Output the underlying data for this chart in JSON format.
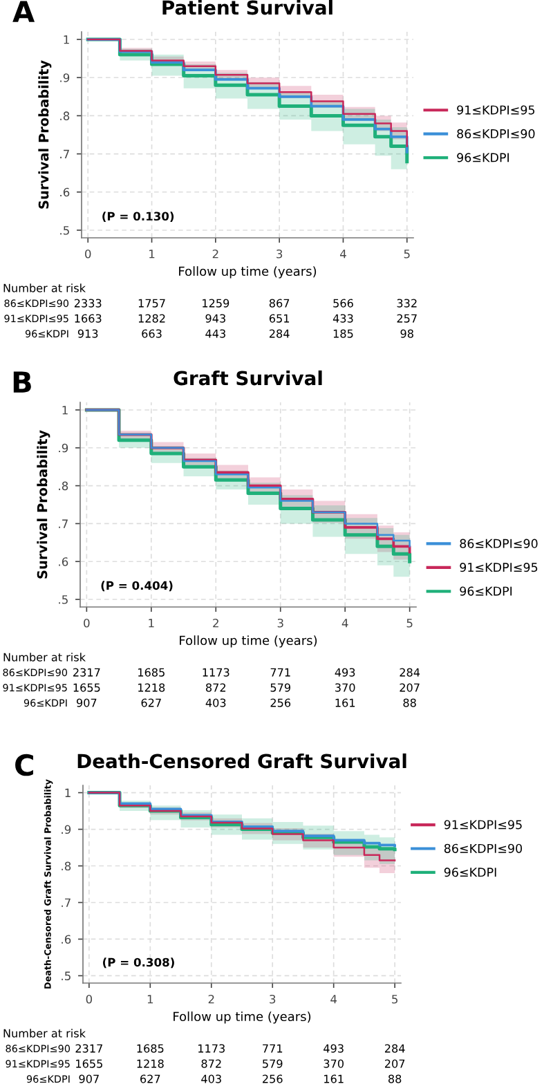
{
  "chart_data": [
    {
      "type": "step",
      "title": "Patient Survival",
      "xlabel": "Follow up time (years)",
      "ylabel": "Survival Probability",
      "xlim": [
        -0.1,
        5.1
      ],
      "ylim": [
        0.48,
        1.02
      ],
      "xticks": [
        0,
        1,
        2,
        3,
        4,
        5
      ],
      "yticks": [
        {
          "value": 0.5,
          "label": ".5"
        },
        {
          "value": 0.6,
          "label": ".6"
        },
        {
          "value": 0.7,
          "label": ".7"
        },
        {
          "value": 0.8,
          "label": ".8"
        },
        {
          "value": 0.9,
          "label": ".9"
        },
        1
      ],
      "grid": true,
      "legend": "right",
      "x": [
        0,
        0.5,
        1,
        1.5,
        2,
        2.5,
        3,
        3.5,
        4,
        4.5,
        4.75,
        5
      ],
      "series": [
        {
          "name": "91≤KDPI≤95",
          "color": "#c8285a",
          "values": [
            1,
            0.97,
            0.945,
            0.93,
            0.907,
            0.885,
            0.862,
            0.838,
            0.805,
            0.78,
            0.76,
            0.72
          ],
          "lower": [
            1,
            0.962,
            0.935,
            0.918,
            0.894,
            0.87,
            0.846,
            0.821,
            0.787,
            0.76,
            0.738,
            0.69
          ],
          "upper": [
            1,
            0.978,
            0.955,
            0.942,
            0.92,
            0.9,
            0.878,
            0.855,
            0.823,
            0.8,
            0.782,
            0.765
          ]
        },
        {
          "name": "86≤KDPI≤90",
          "color": "#3a8fd8",
          "values": [
            1,
            0.968,
            0.94,
            0.92,
            0.895,
            0.872,
            0.85,
            0.825,
            0.79,
            0.765,
            0.745,
            0.705
          ]
        },
        {
          "name": "96≤KDPI",
          "color": "#1fb07a",
          "values": [
            1,
            0.96,
            0.935,
            0.905,
            0.88,
            0.855,
            0.825,
            0.8,
            0.775,
            0.745,
            0.72,
            0.68
          ],
          "lower": [
            1,
            0.945,
            0.905,
            0.872,
            0.845,
            0.818,
            0.79,
            0.76,
            0.725,
            0.695,
            0.66,
            0.62
          ],
          "upper": [
            1,
            0.975,
            0.96,
            0.935,
            0.912,
            0.888,
            0.86,
            0.838,
            0.818,
            0.79,
            0.77,
            0.735
          ]
        }
      ],
      "annotations": [
        "A",
        "(P = 0.130)",
        "Number at risk",
        "86≤KDPI≤90",
        "2333",
        "1757",
        "1259",
        "867",
        "566",
        "332",
        "91≤KDPI≤95",
        "1663",
        "1282",
        "943",
        "651",
        "433",
        "257",
        "96≤KDPI",
        "913",
        "663",
        "443",
        "284",
        "185",
        "98"
      ]
    },
    {
      "type": "step",
      "title": "Graft Survival",
      "xlabel": "Follow up time (years)",
      "ylabel": "Survival Probability",
      "xlim": [
        -0.1,
        5.1
      ],
      "ylim": [
        0.48,
        1.02
      ],
      "xticks": [
        0,
        1,
        2,
        3,
        4,
        5
      ],
      "yticks": [
        {
          "value": 0.5,
          "label": ".5"
        },
        {
          "value": 0.6,
          "label": ".6"
        },
        {
          "value": 0.7,
          "label": ".7"
        },
        {
          "value": 0.8,
          "label": ".8"
        },
        {
          "value": 0.9,
          "label": ".9"
        },
        1
      ],
      "grid": true,
      "legend": "bottom right",
      "x": [
        0,
        0.5,
        1,
        1.5,
        2,
        2.5,
        3,
        3.5,
        4,
        4.5,
        4.75,
        5
      ],
      "series": [
        {
          "name": "86≤KDPI≤90",
          "color": "#3a8fd8",
          "values": [
            1,
            0.935,
            0.9,
            0.865,
            0.83,
            0.795,
            0.76,
            0.73,
            0.7,
            0.67,
            0.655,
            0.64
          ]
        },
        {
          "name": "91≤KDPI≤95",
          "color": "#c8285a",
          "values": [
            1,
            0.935,
            0.9,
            0.868,
            0.835,
            0.8,
            0.765,
            0.73,
            0.69,
            0.66,
            0.64,
            0.625
          ],
          "lower": [
            1,
            0.922,
            0.885,
            0.85,
            0.815,
            0.778,
            0.74,
            0.702,
            0.66,
            0.625,
            0.605,
            0.59
          ],
          "upper": [
            1,
            0.945,
            0.915,
            0.885,
            0.855,
            0.822,
            0.79,
            0.76,
            0.725,
            0.695,
            0.677,
            0.66
          ]
        },
        {
          "name": "96≤KDPI",
          "color": "#1fb07a",
          "values": [
            1,
            0.92,
            0.885,
            0.85,
            0.815,
            0.78,
            0.74,
            0.71,
            0.67,
            0.64,
            0.62,
            0.6
          ],
          "lower": [
            1,
            0.9,
            0.86,
            0.825,
            0.79,
            0.75,
            0.7,
            0.665,
            0.62,
            0.59,
            0.56,
            0.54
          ],
          "upper": [
            1,
            0.94,
            0.905,
            0.873,
            0.84,
            0.808,
            0.775,
            0.748,
            0.715,
            0.688,
            0.67,
            0.645
          ]
        }
      ],
      "annotations": [
        "B",
        "(P = 0.404)",
        "Number at risk",
        "86≤KDPI≤90",
        "2317",
        "1685",
        "1173",
        "771",
        "493",
        "284",
        "91≤KDPI≤95",
        "1655",
        "1218",
        "872",
        "579",
        "370",
        "207",
        "96≤KDPI",
        "907",
        "627",
        "403",
        "256",
        "161",
        "88"
      ]
    },
    {
      "type": "step",
      "title": "Death-Censored Graft Survival",
      "xlabel": "Follow up time (years)",
      "ylabel": "Death-Censored Graft Survival Probability",
      "xlim": [
        -0.1,
        5.1
      ],
      "ylim": [
        0.48,
        1.02
      ],
      "xticks": [
        0,
        1,
        2,
        3,
        4,
        5
      ],
      "yticks": [
        {
          "value": 0.5,
          "label": ".5"
        },
        {
          "value": 0.6,
          "label": ".6"
        },
        {
          "value": 0.7,
          "label": ".7"
        },
        {
          "value": 0.8,
          "label": ".8"
        },
        {
          "value": 0.9,
          "label": ".9"
        },
        1
      ],
      "grid": true,
      "legend": "top right",
      "x": [
        0,
        0.5,
        1,
        1.5,
        2,
        2.5,
        3,
        3.5,
        4,
        4.5,
        4.75,
        5
      ],
      "series": [
        {
          "name": "91≤KDPI≤95",
          "color": "#c8285a",
          "values": [
            1,
            0.965,
            0.95,
            0.935,
            0.918,
            0.902,
            0.887,
            0.87,
            0.85,
            0.83,
            0.815,
            0.815
          ],
          "lower": [
            1,
            0.958,
            0.94,
            0.924,
            0.905,
            0.887,
            0.87,
            0.85,
            0.825,
            0.795,
            0.78,
            0.78
          ],
          "upper": [
            1,
            0.972,
            0.96,
            0.946,
            0.93,
            0.917,
            0.903,
            0.888,
            0.87,
            0.855,
            0.845,
            0.845
          ]
        },
        {
          "name": "86≤KDPI≤90",
          "color": "#3a8fd8",
          "values": [
            1,
            0.97,
            0.955,
            0.938,
            0.92,
            0.907,
            0.895,
            0.882,
            0.87,
            0.862,
            0.857,
            0.855
          ]
        },
        {
          "name": "96≤KDPI",
          "color": "#1fb07a",
          "values": [
            1,
            0.965,
            0.95,
            0.932,
            0.913,
            0.9,
            0.89,
            0.878,
            0.865,
            0.852,
            0.847,
            0.845
          ],
          "lower": [
            1,
            0.95,
            0.925,
            0.905,
            0.885,
            0.872,
            0.86,
            0.845,
            0.83,
            0.815,
            0.805,
            0.8
          ],
          "upper": [
            1,
            0.978,
            0.965,
            0.952,
            0.94,
            0.93,
            0.92,
            0.91,
            0.895,
            0.885,
            0.878,
            0.875
          ]
        }
      ],
      "annotations": [
        "C",
        "(P = 0.308)",
        "Number at risk",
        "86≤KDPI≤90",
        "2317",
        "1685",
        "1173",
        "771",
        "493",
        "284",
        "91≤KDPI≤95",
        "1655",
        "1218",
        "872",
        "579",
        "370",
        "207",
        "96≤KDPI",
        "907",
        "627",
        "403",
        "256",
        "161",
        "88"
      ]
    }
  ]
}
